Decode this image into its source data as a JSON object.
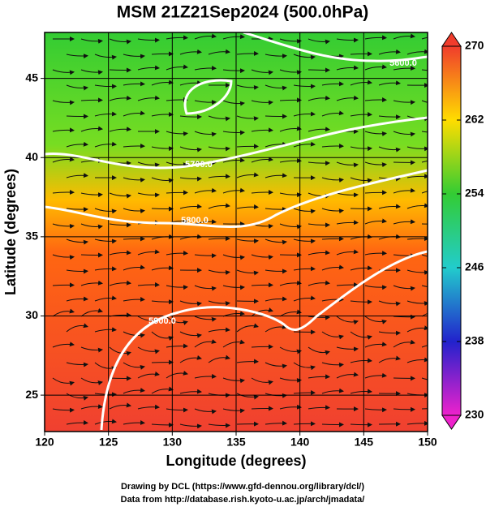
{
  "chart_data": {
    "type": "map",
    "title": "MSM 21Z21Sep2024 (500.0hPa)",
    "x_label": "Longitude (degrees)",
    "y_label": "Latitude  (degrees)",
    "xlim": [
      120,
      150
    ],
    "ylim": [
      22.7,
      47.9
    ],
    "xticks": [
      120,
      125,
      130,
      135,
      140,
      145,
      150
    ],
    "yticks": [
      25,
      30,
      35,
      40,
      45
    ],
    "grid": true,
    "colorbar": {
      "lim": [
        230,
        270
      ],
      "ticks": [
        230,
        238,
        246,
        254,
        262,
        270
      ],
      "colors": [
        "#ee22cc",
        "#2222cc",
        "#22cccc",
        "#33cc33",
        "#ffdd00",
        "#f03c2c"
      ]
    },
    "contours": [
      {
        "value": 5600,
        "label": "5600.0"
      },
      {
        "value": 5700,
        "label": "5700.0"
      },
      {
        "value": 5800,
        "label": "5800.0"
      },
      {
        "value": 5900,
        "label": "5900.0"
      }
    ],
    "credits": [
      "Drawing by DCL (https://www.gfd-dennou.org/library/dcl/)",
      "Data from http://database.rish.kyoto-u.ac.jp/arch/jmadata/"
    ]
  }
}
